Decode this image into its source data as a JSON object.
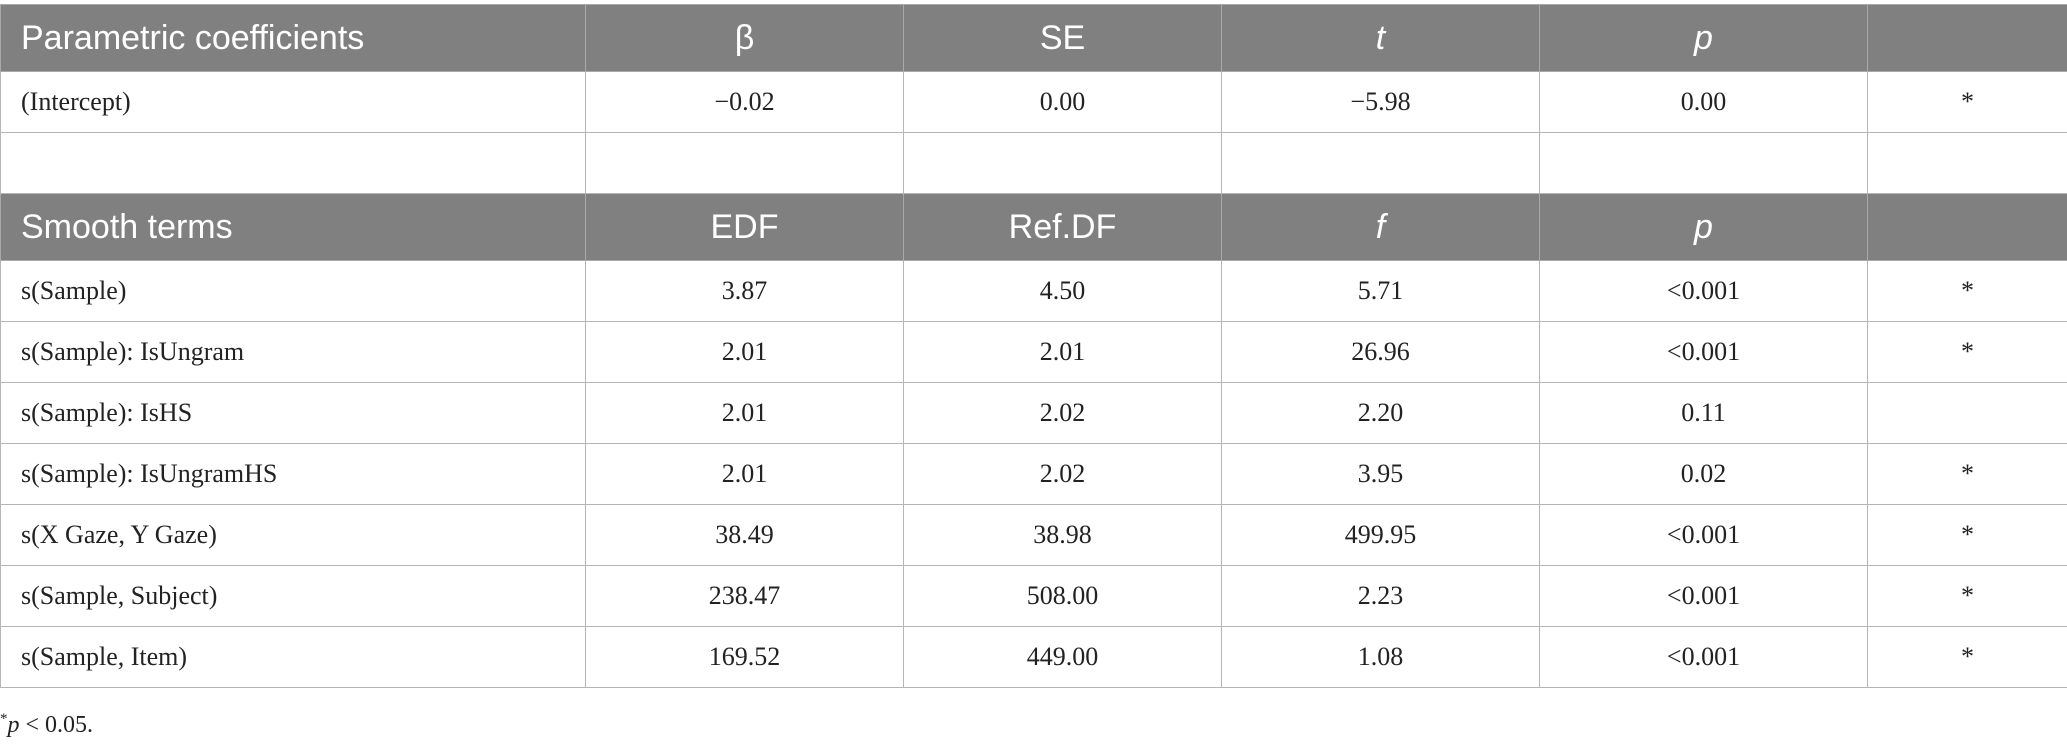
{
  "parametric": {
    "headers": [
      "Parametric coefficients",
      "β",
      "SE",
      "t",
      "p",
      ""
    ],
    "rows": [
      [
        "(Intercept)",
        "−0.02",
        "0.00",
        "−5.98",
        "0.00",
        "*"
      ]
    ]
  },
  "smooth": {
    "headers": [
      "Smooth terms",
      "EDF",
      "Ref.DF",
      "f",
      "p",
      ""
    ],
    "rows": [
      [
        "s(Sample)",
        "3.87",
        "4.50",
        "5.71",
        "<0.001",
        "*"
      ],
      [
        "s(Sample): IsUngram",
        "2.01",
        "2.01",
        "26.96",
        "<0.001",
        "*"
      ],
      [
        "s(Sample): IsHS",
        "2.01",
        "2.02",
        "2.20",
        "0.11",
        ""
      ],
      [
        "s(Sample): IsUngramHS",
        "2.01",
        "2.02",
        "3.95",
        "0.02",
        "*"
      ],
      [
        "s(X Gaze, Y Gaze)",
        "38.49",
        "38.98",
        "499.95",
        "<0.001",
        "*"
      ],
      [
        "s(Sample, Subject)",
        "238.47",
        "508.00",
        "2.23",
        "<0.001",
        "*"
      ],
      [
        "s(Sample, Item)",
        "169.52",
        "449.00",
        "1.08",
        "<0.001",
        "*"
      ]
    ]
  },
  "footnote": {
    "marker": "*",
    "var": "p",
    "text": " < 0.05."
  }
}
